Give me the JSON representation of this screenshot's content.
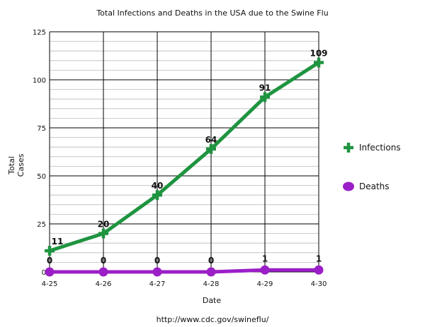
{
  "chart_data": {
    "type": "line",
    "title": "Total Infections and Deaths in the USA due to the Swine Flu",
    "xlabel": "Date",
    "ylabel": "Total Cases",
    "categories": [
      "4-25",
      "4-26",
      "4-27",
      "4-28",
      "4-29",
      "4-30"
    ],
    "ylim": [
      0,
      125
    ],
    "yticks": [
      0,
      25,
      50,
      75,
      100,
      125
    ],
    "grid": true,
    "legend_position": "right",
    "series": [
      {
        "name": "Infections",
        "values": [
          11,
          20,
          40,
          64,
          91,
          109
        ],
        "color": "#1f9440",
        "marker": "plus"
      },
      {
        "name": "Deaths",
        "values": [
          0,
          0,
          0,
          0,
          1,
          1
        ],
        "color": "#9b1fc7",
        "marker": "circle"
      }
    ],
    "source_note": "http://www.cdc.gov/swineflu/"
  }
}
